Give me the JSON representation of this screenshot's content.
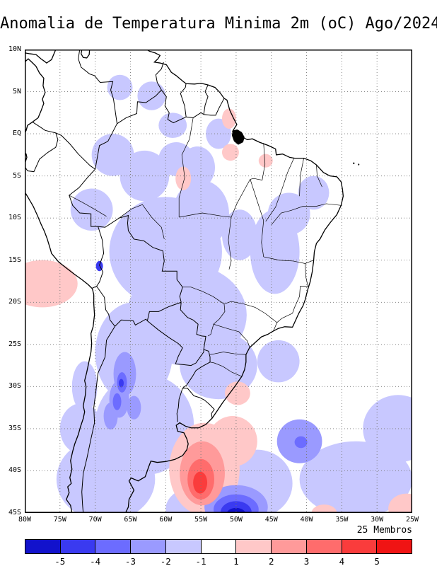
{
  "title": "Anomalia de Temperatura Minima 2m (oC) Ago/2024",
  "map": {
    "lat_ticks": [
      "10N",
      "5N",
      "EQ",
      "5S",
      "10S",
      "15S",
      "20S",
      "25S",
      "30S",
      "35S",
      "40S",
      "45S"
    ],
    "lon_ticks": [
      "80W",
      "75W",
      "70W",
      "65W",
      "60W",
      "55W",
      "50W",
      "45W",
      "40W",
      "35W",
      "30W",
      "25W"
    ]
  },
  "colorbar": {
    "members_label": "25 Membros",
    "labels": [
      "-5",
      "-4",
      "-3",
      "-2",
      "-1",
      "1",
      "2",
      "3",
      "4",
      "5"
    ],
    "colors": [
      "#1212CC",
      "#3A3AF0",
      "#6C6CFF",
      "#9A9AFF",
      "#C8C8FF",
      "#FFFFFF",
      "#FFC8C8",
      "#FF9A9A",
      "#FF6C6C",
      "#FA3C3C",
      "#F01414"
    ]
  },
  "chart_data": {
    "type": "filled-contour-map",
    "title": "Anomalia de Temperatura Minima 2m (oC) Ago/2024",
    "variable": "2m minimum temperature anomaly",
    "units": "oC",
    "period": "Ago/2024",
    "ensemble_members": 25,
    "region": "South America",
    "lon_ticks_deg": [
      -80,
      -75,
      -70,
      -65,
      -60,
      -55,
      -50,
      -45,
      -40,
      -35,
      -30,
      -25
    ],
    "lat_ticks_deg": [
      10,
      5,
      0,
      -5,
      -10,
      -15,
      -20,
      -25,
      -30,
      -35,
      -40,
      -45
    ],
    "contour_levels": [
      -5,
      -4,
      -3,
      -2,
      -1,
      1,
      2,
      3,
      4,
      5
    ],
    "grid": "dotted, 5 degree spacing",
    "region_format": [
      "lon_deg",
      "lat_deg",
      "rx_deg",
      "ry_deg",
      "color_index"
    ],
    "anomaly_regions": [
      [
        -60,
        -14,
        8,
        6.5,
        4
      ],
      [
        -57,
        -21.5,
        8.5,
        6,
        4
      ],
      [
        -64.5,
        -26,
        5.5,
        6,
        4
      ],
      [
        -63,
        -34.5,
        7,
        6,
        4
      ],
      [
        -68.5,
        -41,
        7,
        5,
        4
      ],
      [
        -52.5,
        -27.5,
        5.5,
        4,
        4
      ],
      [
        -55,
        -9.5,
        4,
        4,
        4
      ],
      [
        -63,
        -5,
        3.5,
        3,
        4
      ],
      [
        -67.5,
        -2.5,
        3,
        2.5,
        4
      ],
      [
        -58.5,
        -3,
        2.5,
        2,
        4
      ],
      [
        -70.5,
        -9,
        3,
        2.5,
        4
      ],
      [
        -44.5,
        -14,
        3.5,
        5,
        4
      ],
      [
        -42.5,
        -9.5,
        3,
        2.5,
        4
      ],
      [
        -39,
        -7,
        2.2,
        2,
        4
      ],
      [
        -33,
        -41,
        8,
        4.5,
        4
      ],
      [
        -27,
        -35,
        5,
        4,
        4
      ],
      [
        -47,
        -41.5,
        5,
        4,
        4
      ],
      [
        -54,
        -44.5,
        6,
        3,
        4
      ],
      [
        -50,
        -44.8,
        5.5,
        3,
        4
      ],
      [
        -62,
        4.5,
        2,
        1.7,
        4
      ],
      [
        -66.5,
        5.5,
        1.8,
        1.5,
        4
      ],
      [
        -59,
        1,
        2,
        1.5,
        4
      ],
      [
        -55.5,
        -4,
        2.5,
        2.5,
        4
      ],
      [
        -52.5,
        0,
        1.8,
        1.8,
        4
      ],
      [
        -72,
        -35,
        3,
        3,
        4
      ],
      [
        -71.5,
        -30,
        1.8,
        3,
        4
      ],
      [
        -49.5,
        -12,
        2.5,
        3,
        4
      ],
      [
        -44,
        -27,
        3,
        2.5,
        4
      ],
      [
        -77.5,
        -17.8,
        5,
        2.8,
        6
      ],
      [
        -54.5,
        -39.8,
        5,
        5.5,
        6
      ],
      [
        -50.5,
        -36.5,
        3.5,
        3,
        6
      ],
      [
        -50.8,
        -2.2,
        1.2,
        1,
        6
      ],
      [
        -45.8,
        -3.2,
        1,
        0.8,
        6
      ],
      [
        -51,
        1.8,
        1,
        1.2,
        6
      ],
      [
        -49.8,
        -30.8,
        1.8,
        1.4,
        6
      ],
      [
        -25.8,
        -44.5,
        2.6,
        1.8,
        6
      ],
      [
        -37.5,
        -45,
        1.8,
        1,
        6
      ],
      [
        -57.5,
        -5.3,
        1.1,
        1.4,
        6
      ],
      [
        -65.8,
        -28.5,
        1.6,
        2.6,
        3
      ],
      [
        -66.6,
        -31.5,
        1.4,
        2.2,
        3
      ],
      [
        -64.5,
        -32.5,
        1,
        1.4,
        3
      ],
      [
        -67.8,
        -33.5,
        1,
        1.6,
        3
      ],
      [
        -41,
        -36.5,
        3.2,
        2.6,
        3
      ],
      [
        -50,
        -44.3,
        4.5,
        2.6,
        3
      ],
      [
        -54.8,
        -40.3,
        3.2,
        3.8,
        7
      ],
      [
        -66.2,
        -29.5,
        0.7,
        1.2,
        2
      ],
      [
        -66.9,
        -31.8,
        0.6,
        1,
        2
      ],
      [
        -50,
        -44.6,
        3.2,
        1.8,
        2
      ],
      [
        -40.8,
        -36.6,
        0.9,
        0.7,
        2
      ],
      [
        -55,
        -41,
        1.9,
        2.4,
        8
      ],
      [
        -50,
        -44.9,
        2.2,
        1.3,
        1
      ],
      [
        -69.4,
        -15.7,
        0.5,
        0.6,
        1
      ],
      [
        -66.3,
        -29.6,
        0.35,
        0.5,
        1
      ],
      [
        -55.1,
        -41.4,
        1,
        1.3,
        9
      ],
      [
        -50,
        -45.2,
        1.4,
        0.8,
        0
      ]
    ]
  }
}
